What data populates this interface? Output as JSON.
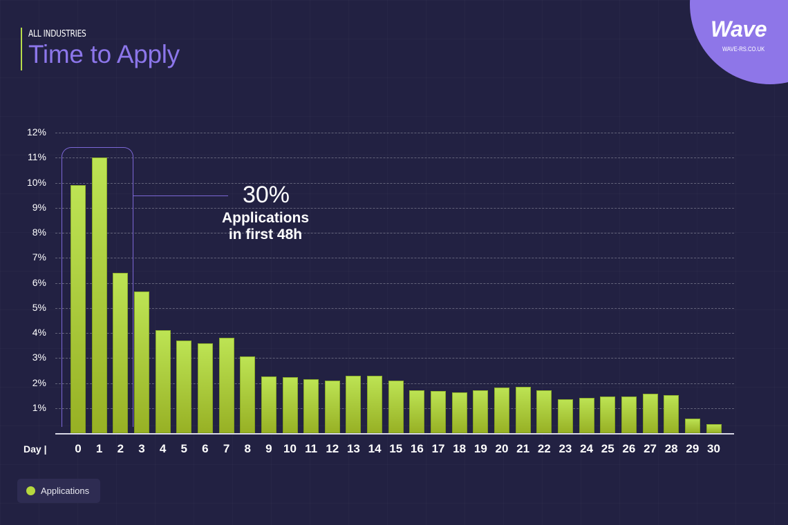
{
  "header": {
    "subtitle": "ALL INDUSTRIES",
    "title": "Time to Apply"
  },
  "logo": {
    "name": "Wave",
    "url": "WAVE-RS.CO.UK"
  },
  "annotation": {
    "value": "30%",
    "line1": "Applications",
    "line2": "in first 48h"
  },
  "x_axis_label": "Day  |",
  "legend": {
    "label": "Applications"
  },
  "colors": {
    "background": "#222142",
    "bar": "#b6d83e",
    "accent": "#8c76ea",
    "bracket": "#7d68d8"
  },
  "chart_data": {
    "type": "bar",
    "title": "Time to Apply",
    "subtitle": "ALL INDUSTRIES",
    "xlabel": "Day",
    "ylabel": "",
    "ylim": [
      0,
      12
    ],
    "yticks": [
      "1%",
      "2%",
      "3%",
      "4%",
      "5%",
      "6%",
      "7%",
      "8%",
      "9%",
      "10%",
      "11%",
      "12%"
    ],
    "grid": true,
    "legend_position": "bottom-left",
    "categories": [
      "0",
      "1",
      "2",
      "3",
      "4",
      "5",
      "6",
      "7",
      "8",
      "9",
      "10",
      "11",
      "12",
      "13",
      "14",
      "15",
      "16",
      "17",
      "18",
      "19",
      "20",
      "21",
      "22",
      "23",
      "24",
      "25",
      "26",
      "27",
      "28",
      "29",
      "30"
    ],
    "series": [
      {
        "name": "Applications",
        "values": [
          9.9,
          11.0,
          6.4,
          5.65,
          4.1,
          3.7,
          3.6,
          3.8,
          3.05,
          2.25,
          2.23,
          2.15,
          2.1,
          2.3,
          2.3,
          2.1,
          1.7,
          1.67,
          1.63,
          1.7,
          1.82,
          1.85,
          1.7,
          1.35,
          1.4,
          1.45,
          1.47,
          1.57,
          1.52,
          0.57,
          0.35
        ]
      }
    ],
    "annotations": [
      {
        "text": "30% Applications in first 48h",
        "bracket_categories": [
          "0",
          "1",
          "2"
        ]
      }
    ]
  }
}
